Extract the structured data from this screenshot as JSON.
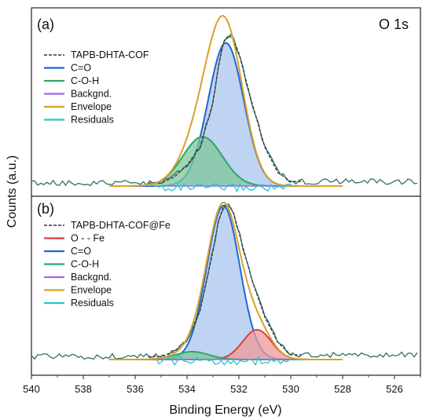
{
  "chart_data": [
    {
      "type": "area",
      "panel_label": "(a)",
      "annotation": "O 1s",
      "x_range": [
        540,
        525
      ],
      "legend_position": "top-left",
      "series": [
        {
          "name": "TAPB-DHTA-COF",
          "style": "dashed",
          "color": "#333333",
          "x": [
            535,
            534.5,
            534,
            533.5,
            533,
            532.8,
            532.6,
            532.4,
            532.2,
            532,
            531.5,
            531,
            530.5,
            530
          ],
          "values": [
            0.01,
            0.05,
            0.13,
            0.25,
            0.55,
            0.78,
            0.95,
            1.0,
            0.97,
            0.88,
            0.55,
            0.25,
            0.08,
            0.02
          ]
        },
        {
          "name": "C=O",
          "color": "#1f66d6",
          "fill": "#a9c4ee",
          "peak": {
            "center": 532.5,
            "height": 0.96,
            "fwhm": 1.6
          }
        },
        {
          "name": "C-O-H",
          "color": "#2aa86a",
          "fill": "#7dc79a",
          "peak": {
            "center": 533.4,
            "height": 0.33,
            "fwhm": 1.8
          }
        },
        {
          "name": "Backgnd.",
          "color": "#a366e8"
        },
        {
          "name": "Envelope",
          "color": "#d9a128"
        },
        {
          "name": "Residuals",
          "color": "#22c7c7"
        }
      ]
    },
    {
      "type": "area",
      "panel_label": "(b)",
      "x_range": [
        540,
        525
      ],
      "legend_position": "top-left",
      "series": [
        {
          "name": "TAPB-DHTA-COF@Fe",
          "style": "dashed",
          "color": "#333333",
          "x": [
            535,
            534.5,
            534,
            533.5,
            533,
            532.8,
            532.6,
            532.4,
            532.2,
            532,
            531.5,
            531,
            530.5,
            530
          ],
          "values": [
            0.01,
            0.04,
            0.12,
            0.3,
            0.68,
            0.86,
            0.97,
            0.98,
            0.92,
            0.8,
            0.5,
            0.26,
            0.1,
            0.02
          ]
        },
        {
          "name": "O - - Fe",
          "color": "#e03b3b",
          "fill": "#ef9a9a",
          "peak": {
            "center": 531.3,
            "height": 0.19,
            "fwhm": 1.3
          }
        },
        {
          "name": "C=O",
          "color": "#1f66d6",
          "fill": "#a9c4ee",
          "peak": {
            "center": 532.6,
            "height": 0.98,
            "fwhm": 1.5
          }
        },
        {
          "name": "C-O-H",
          "color": "#2aa86a",
          "fill": "#7dc79a",
          "peak": {
            "center": 533.8,
            "height": 0.05,
            "fwhm": 1.5
          }
        },
        {
          "name": "Backgnd.",
          "color": "#a366e8"
        },
        {
          "name": "Envelope",
          "color": "#d9a128"
        },
        {
          "name": "Residuals",
          "color": "#22c7c7"
        }
      ]
    }
  ],
  "xlabel": "Binding Energy (eV)",
  "ylabel": "Counts (a.u.)",
  "x_ticks": [
    "540",
    "538",
    "536",
    "534",
    "532",
    "530",
    "528",
    "526"
  ]
}
